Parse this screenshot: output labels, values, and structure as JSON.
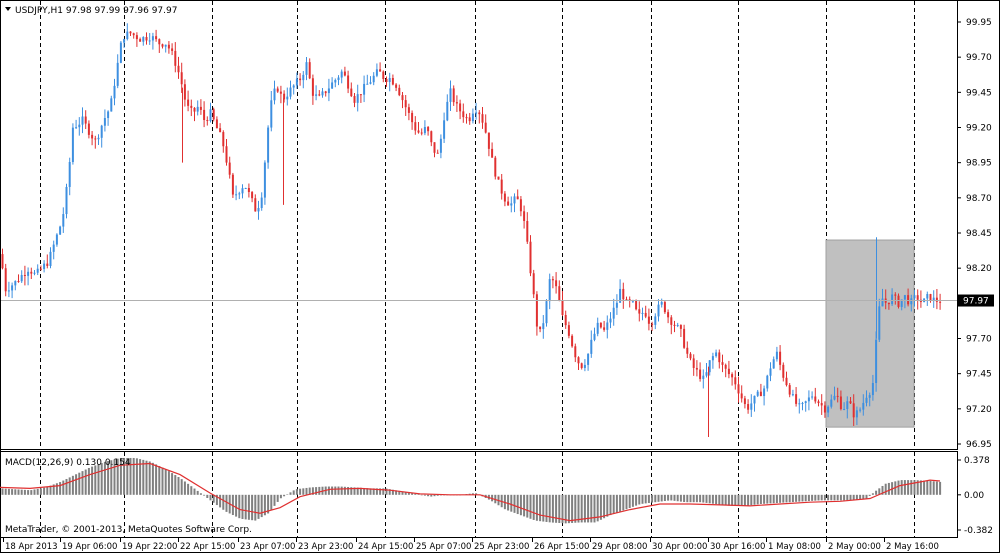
{
  "window": {
    "symbol_header": "USDJPY,H1  97.98 97.99 97.96 97.97",
    "copyright": "MetaTrader, © 2001-2013, MetaQuotes Software Corp."
  },
  "price_axis": {
    "ticks": [
      "99.95",
      "99.70",
      "99.45",
      "99.20",
      "98.95",
      "98.70",
      "98.45",
      "98.20",
      "97.70",
      "97.45",
      "97.20",
      "96.95"
    ],
    "tick_values": [
      99.95,
      99.7,
      99.45,
      99.2,
      98.95,
      98.7,
      98.45,
      98.2,
      97.7,
      97.45,
      97.2,
      96.95
    ],
    "current_price": "97.97",
    "current_price_value": 97.97
  },
  "time_axis": {
    "labels": [
      "18 Apr 2013",
      "19 Apr 06:00",
      "19 Apr 22:00",
      "22 Apr 15:00",
      "23 Apr 07:00",
      "23 Apr 23:00",
      "24 Apr 15:00",
      "25 Apr 07:00",
      "25 Apr 23:00",
      "26 Apr 15:00",
      "29 Apr 08:00",
      "30 Apr 00:00",
      "30 Apr 16:00",
      "1 May 08:00",
      "2 May 00:00",
      "2 May 16:00"
    ]
  },
  "macd": {
    "label": "MACD(12,26,9) 0.130 0.154",
    "ticks": [
      "0.378",
      "0.00",
      "-0.382"
    ],
    "tick_values": [
      0.378,
      0.0,
      -0.382
    ]
  },
  "chart_data": {
    "type": "candlestick",
    "symbol": "USDJPY",
    "timeframe": "H1",
    "ohlc_current": {
      "open": 97.98,
      "high": 97.99,
      "low": 97.96,
      "close": 97.97
    },
    "ylim": [
      96.87,
      100.05
    ],
    "grid": "vertical dashed separators",
    "colors": {
      "bull": "#3d8fe0",
      "bear": "#e03030",
      "current_line": "#b0b0b0",
      "highlight_box": "#c0c0c0",
      "macd_hist": "#808080",
      "macd_signal": "#e03030"
    },
    "highlight": {
      "from": "2 May 00:00",
      "to": "2 May 16:00",
      "price_range": [
        97.07,
        98.4
      ]
    },
    "close_path": [
      [
        0,
        98.3
      ],
      [
        5,
        98.05
      ],
      [
        15,
        98.1
      ],
      [
        28,
        98.2
      ],
      [
        35,
        98.15
      ],
      [
        48,
        98.25
      ],
      [
        55,
        98.4
      ],
      [
        62,
        98.55
      ],
      [
        68,
        98.85
      ],
      [
        72,
        99.2
      ],
      [
        82,
        99.25
      ],
      [
        95,
        99.1
      ],
      [
        103,
        99.25
      ],
      [
        110,
        99.35
      ],
      [
        116,
        99.6
      ],
      [
        122,
        99.85
      ],
      [
        130,
        99.87
      ],
      [
        140,
        99.83
      ],
      [
        150,
        99.85
      ],
      [
        158,
        99.8
      ],
      [
        166,
        99.8
      ],
      [
        173,
        99.7
      ],
      [
        180,
        99.55
      ],
      [
        186,
        99.35
      ],
      [
        192,
        99.3
      ],
      [
        198,
        99.35
      ],
      [
        204,
        99.25
      ],
      [
        210,
        99.3
      ],
      [
        216,
        99.2
      ],
      [
        222,
        99.1
      ],
      [
        228,
        98.9
      ],
      [
        232,
        98.7
      ],
      [
        238,
        98.75
      ],
      [
        244,
        98.8
      ],
      [
        250,
        98.7
      ],
      [
        256,
        98.6
      ],
      [
        262,
        98.75
      ],
      [
        266,
        99.1
      ],
      [
        270,
        99.35
      ],
      [
        276,
        99.5
      ],
      [
        282,
        99.4
      ],
      [
        288,
        99.45
      ],
      [
        294,
        99.5
      ],
      [
        300,
        99.55
      ],
      [
        306,
        99.65
      ],
      [
        312,
        99.45
      ],
      [
        318,
        99.4
      ],
      [
        324,
        99.45
      ],
      [
        330,
        99.5
      ],
      [
        336,
        99.55
      ],
      [
        342,
        99.6
      ],
      [
        348,
        99.5
      ],
      [
        354,
        99.4
      ],
      [
        360,
        99.45
      ],
      [
        366,
        99.5
      ],
      [
        372,
        99.55
      ],
      [
        378,
        99.6
      ],
      [
        384,
        99.55
      ],
      [
        390,
        99.55
      ],
      [
        396,
        99.5
      ],
      [
        402,
        99.4
      ],
      [
        408,
        99.3
      ],
      [
        414,
        99.2
      ],
      [
        420,
        99.15
      ],
      [
        426,
        99.2
      ],
      [
        432,
        99.05
      ],
      [
        438,
        99.0
      ],
      [
        444,
        99.3
      ],
      [
        450,
        99.45
      ],
      [
        456,
        99.35
      ],
      [
        462,
        99.3
      ],
      [
        468,
        99.25
      ],
      [
        474,
        99.35
      ],
      [
        480,
        99.3
      ],
      [
        486,
        99.15
      ],
      [
        492,
        98.95
      ],
      [
        498,
        98.8
      ],
      [
        504,
        98.7
      ],
      [
        510,
        98.65
      ],
      [
        516,
        98.7
      ],
      [
        522,
        98.6
      ],
      [
        528,
        98.3
      ],
      [
        534,
        97.95
      ],
      [
        538,
        97.7
      ],
      [
        544,
        97.85
      ],
      [
        550,
        98.15
      ],
      [
        556,
        98.05
      ],
      [
        562,
        97.85
      ],
      [
        568,
        97.75
      ],
      [
        574,
        97.6
      ],
      [
        580,
        97.5
      ],
      [
        586,
        97.55
      ],
      [
        592,
        97.7
      ],
      [
        598,
        97.8
      ],
      [
        604,
        97.75
      ],
      [
        610,
        97.85
      ],
      [
        616,
        97.95
      ],
      [
        620,
        98.05
      ],
      [
        626,
        97.95
      ],
      [
        632,
        97.95
      ],
      [
        638,
        97.85
      ],
      [
        644,
        97.9
      ],
      [
        650,
        97.8
      ],
      [
        656,
        97.9
      ],
      [
        662,
        97.95
      ],
      [
        668,
        97.85
      ],
      [
        674,
        97.8
      ],
      [
        680,
        97.75
      ],
      [
        686,
        97.6
      ],
      [
        692,
        97.5
      ],
      [
        698,
        97.45
      ],
      [
        704,
        97.4
      ],
      [
        710,
        97.55
      ],
      [
        716,
        97.6
      ],
      [
        722,
        97.5
      ],
      [
        728,
        97.45
      ],
      [
        734,
        97.4
      ],
      [
        740,
        97.3
      ],
      [
        746,
        97.2
      ],
      [
        752,
        97.25
      ],
      [
        758,
        97.3
      ],
      [
        764,
        97.35
      ],
      [
        770,
        97.5
      ],
      [
        776,
        97.6
      ],
      [
        782,
        97.45
      ],
      [
        788,
        97.35
      ],
      [
        794,
        97.25
      ],
      [
        800,
        97.2
      ],
      [
        806,
        97.25
      ],
      [
        812,
        97.3
      ],
      [
        818,
        97.25
      ],
      [
        824,
        97.2
      ],
      [
        830,
        97.25
      ],
      [
        836,
        97.3
      ],
      [
        842,
        97.2
      ],
      [
        848,
        97.25
      ],
      [
        854,
        97.15
      ],
      [
        860,
        97.2
      ],
      [
        866,
        97.3
      ],
      [
        872,
        97.35
      ],
      [
        876,
        97.7
      ],
      [
        880,
        98.0
      ],
      [
        886,
        97.95
      ],
      [
        892,
        98.0
      ],
      [
        898,
        97.95
      ],
      [
        904,
        98.0
      ],
      [
        910,
        97.95
      ],
      [
        916,
        98.0
      ],
      [
        922,
        97.95
      ],
      [
        928,
        98.0
      ],
      [
        934,
        97.97
      ],
      [
        940,
        97.97
      ]
    ],
    "macd_hist": [
      [
        0,
        0.07
      ],
      [
        15,
        0.06
      ],
      [
        30,
        0.05
      ],
      [
        45,
        0.08
      ],
      [
        60,
        0.14
      ],
      [
        75,
        0.22
      ],
      [
        90,
        0.3
      ],
      [
        105,
        0.36
      ],
      [
        120,
        0.4
      ],
      [
        135,
        0.4
      ],
      [
        150,
        0.36
      ],
      [
        165,
        0.28
      ],
      [
        180,
        0.18
      ],
      [
        195,
        0.06
      ],
      [
        210,
        -0.06
      ],
      [
        225,
        -0.18
      ],
      [
        240,
        -0.26
      ],
      [
        255,
        -0.28
      ],
      [
        268,
        -0.2
      ],
      [
        280,
        -0.04
      ],
      [
        295,
        0.06
      ],
      [
        310,
        0.08
      ],
      [
        325,
        0.09
      ],
      [
        340,
        0.09
      ],
      [
        355,
        0.08
      ],
      [
        370,
        0.07
      ],
      [
        385,
        0.07
      ],
      [
        400,
        0.04
      ],
      [
        415,
        0.01
      ],
      [
        430,
        -0.02
      ],
      [
        445,
        0.0
      ],
      [
        460,
        0.0
      ],
      [
        475,
        0.02
      ],
      [
        490,
        -0.06
      ],
      [
        505,
        -0.16
      ],
      [
        520,
        -0.22
      ],
      [
        535,
        -0.28
      ],
      [
        550,
        -0.3
      ],
      [
        565,
        -0.31
      ],
      [
        580,
        -0.3
      ],
      [
        595,
        -0.3
      ],
      [
        610,
        -0.22
      ],
      [
        625,
        -0.16
      ],
      [
        640,
        -0.1
      ],
      [
        655,
        -0.08
      ],
      [
        670,
        -0.06
      ],
      [
        685,
        -0.08
      ],
      [
        700,
        -0.08
      ],
      [
        715,
        -0.1
      ],
      [
        730,
        -0.12
      ],
      [
        745,
        -0.12
      ],
      [
        760,
        -0.1
      ],
      [
        775,
        -0.09
      ],
      [
        790,
        -0.08
      ],
      [
        805,
        -0.07
      ],
      [
        820,
        -0.06
      ],
      [
        835,
        -0.06
      ],
      [
        850,
        -0.06
      ],
      [
        865,
        -0.05
      ],
      [
        875,
        0.04
      ],
      [
        885,
        0.12
      ],
      [
        900,
        0.16
      ],
      [
        915,
        0.16
      ],
      [
        930,
        0.15
      ],
      [
        940,
        0.14
      ]
    ],
    "macd_signal": [
      [
        0,
        0.08
      ],
      [
        30,
        0.07
      ],
      [
        60,
        0.1
      ],
      [
        90,
        0.22
      ],
      [
        120,
        0.32
      ],
      [
        150,
        0.34
      ],
      [
        180,
        0.22
      ],
      [
        210,
        0.02
      ],
      [
        240,
        -0.16
      ],
      [
        260,
        -0.2
      ],
      [
        280,
        -0.14
      ],
      [
        300,
        -0.02
      ],
      [
        330,
        0.06
      ],
      [
        360,
        0.07
      ],
      [
        390,
        0.05
      ],
      [
        420,
        0.01
      ],
      [
        450,
        0.0
      ],
      [
        480,
        0.0
      ],
      [
        510,
        -0.1
      ],
      [
        540,
        -0.22
      ],
      [
        570,
        -0.28
      ],
      [
        600,
        -0.24
      ],
      [
        630,
        -0.16
      ],
      [
        660,
        -0.1
      ],
      [
        690,
        -0.1
      ],
      [
        720,
        -0.11
      ],
      [
        750,
        -0.12
      ],
      [
        780,
        -0.1
      ],
      [
        810,
        -0.08
      ],
      [
        840,
        -0.07
      ],
      [
        870,
        -0.04
      ],
      [
        900,
        0.1
      ],
      [
        930,
        0.16
      ],
      [
        940,
        0.15
      ]
    ]
  }
}
